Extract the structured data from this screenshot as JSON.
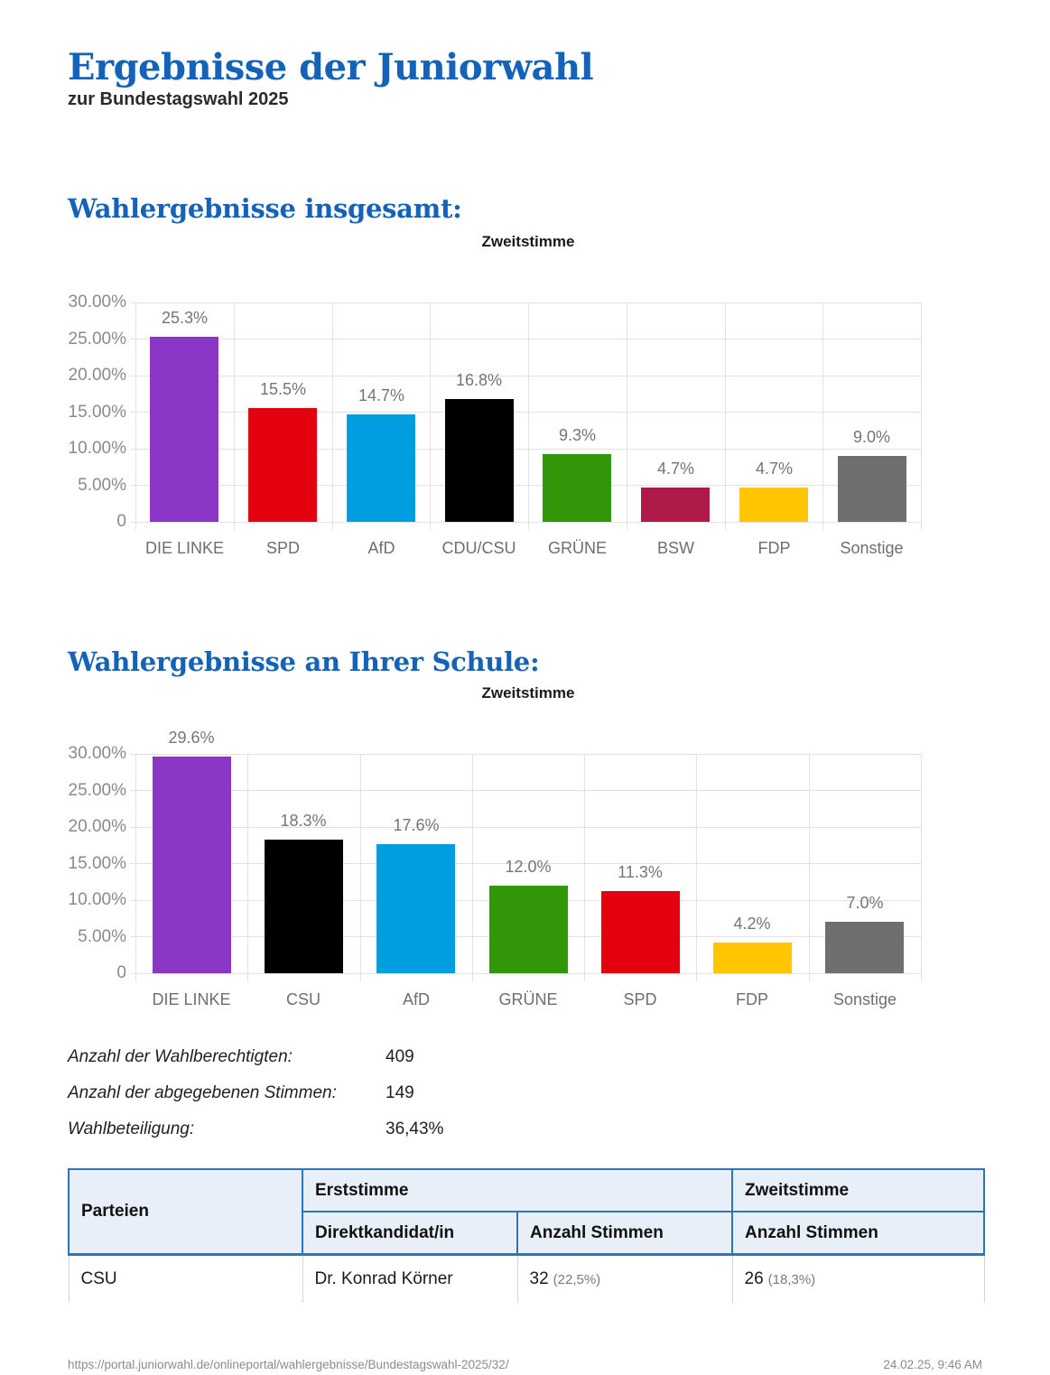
{
  "page": {
    "title": "Ergebnisse der Juniorwahl",
    "subtitle": "zur Bundestagswahl 2025",
    "section_overall_heading": "Wahlergebnisse insgesamt:",
    "section_school_heading": "Wahlergebnisse an Ihrer Schule:"
  },
  "colors": {
    "heading_blue": "#1463B8",
    "table_border_blue": "#2e75b6",
    "table_header_bg": "#e8eff9",
    "grid_gray": "#e2e2e2",
    "die_linke_purple": "#8A36C6",
    "spd_red": "#E3000F",
    "afd_blue": "#009EE0",
    "cdu_csu_black": "#000000",
    "gruene_green": "#319708",
    "bsw_crimson": "#B01A49",
    "fdp_yellow": "#FFC500",
    "sonstige_gray": "#6F6F6F"
  },
  "chart_data": [
    {
      "type": "bar",
      "title": "Zweitstimme",
      "categories": [
        "DIE LINKE",
        "SPD",
        "AfD",
        "CDU/CSU",
        "GRÜNE",
        "BSW",
        "FDP",
        "Sonstige"
      ],
      "values": [
        25.3,
        15.5,
        14.7,
        16.8,
        9.3,
        4.7,
        4.7,
        9.0
      ],
      "value_labels": [
        "25.3%",
        "15.5%",
        "14.7%",
        "16.8%",
        "9.3%",
        "4.7%",
        "4.7%",
        "9.0%"
      ],
      "bar_colors": [
        "#8A36C6",
        "#E3000F",
        "#009EE0",
        "#000000",
        "#319708",
        "#B01A49",
        "#FFC500",
        "#6F6F6F"
      ],
      "xlabel": "",
      "ylabel": "",
      "ylim": [
        0,
        30
      ],
      "yticks": [
        "30.00%",
        "25.00%",
        "20.00%",
        "15.00%",
        "10.00%",
        "5.00%",
        "0"
      ],
      "grid": "on",
      "legend": "none"
    },
    {
      "type": "bar",
      "title": "Zweitstimme",
      "categories": [
        "DIE LINKE",
        "CSU",
        "AfD",
        "GRÜNE",
        "SPD",
        "FDP",
        "Sonstige"
      ],
      "values": [
        29.6,
        18.3,
        17.6,
        12.0,
        11.3,
        4.2,
        7.0
      ],
      "value_labels": [
        "29.6%",
        "18.3%",
        "17.6%",
        "12.0%",
        "11.3%",
        "4.2%",
        "7.0%"
      ],
      "bar_colors": [
        "#8A36C6",
        "#000000",
        "#009EE0",
        "#319708",
        "#E3000F",
        "#FFC500",
        "#6F6F6F"
      ],
      "xlabel": "",
      "ylabel": "",
      "ylim": [
        0,
        30
      ],
      "yticks": [
        "30.00%",
        "25.00%",
        "20.00%",
        "15.00%",
        "10.00%",
        "5.00%",
        "0"
      ],
      "grid": "on",
      "legend": "none"
    }
  ],
  "stats": {
    "rows": [
      {
        "label": "Anzahl der Wahlberechtigten:",
        "value": "409"
      },
      {
        "label": "Anzahl der abgegebenen Stimmen:",
        "value": "149"
      },
      {
        "label": "Wahlbeteiligung:",
        "value": "36,43%"
      }
    ]
  },
  "table": {
    "col_parteien": "Parteien",
    "col_erststimme": "Erststimme",
    "col_zweitstimme": "Zweitstimme",
    "col_direktkandidat": "Direktkandidat/in",
    "col_anzahl_stimmen_erst": "Anzahl Stimmen",
    "col_anzahl_stimmen_zweit": "Anzahl Stimmen",
    "rows": [
      {
        "partei": "CSU",
        "direktkandidat": "Dr. Konrad Körner",
        "erststimme": "32",
        "erststimme_pct": "(22,5%)",
        "zweitstimme": "26",
        "zweitstimme_pct": "(18,3%)"
      }
    ]
  },
  "footer": {
    "url": "https://portal.juniorwahl.de/onlineportal/wahlergebnisse/Bundestagswahl-2025/32/",
    "datetime": "24.02.25, 9:46 AM"
  }
}
